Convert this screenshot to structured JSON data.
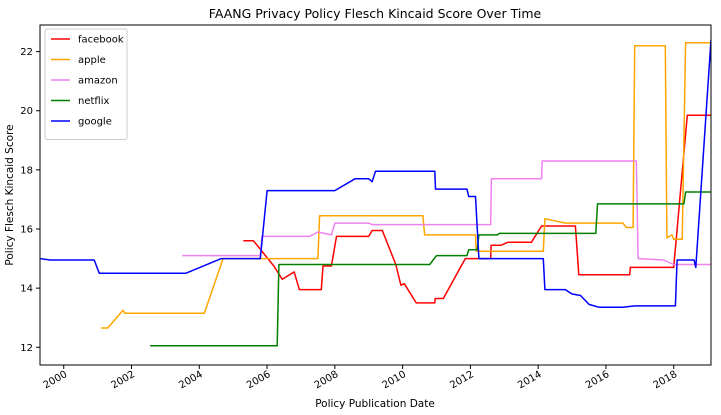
{
  "chart_data": {
    "type": "line",
    "title": "FAANG Privacy Policy Flesch Kincaid Score Over Time",
    "xlabel": "Policy Publication Date",
    "ylabel": "Policy Flesch Kincaid Score",
    "xlim": [
      1999.3,
      2019.1
    ],
    "ylim": [
      11.4,
      22.9
    ],
    "x_ticks": [
      {
        "value": 2000,
        "label": "2000"
      },
      {
        "value": 2002,
        "label": "2002"
      },
      {
        "value": 2004,
        "label": "2004"
      },
      {
        "value": 2006,
        "label": "2006"
      },
      {
        "value": 2008,
        "label": "2008"
      },
      {
        "value": 2010,
        "label": "2010"
      },
      {
        "value": 2012,
        "label": "2012"
      },
      {
        "value": 2014,
        "label": "2014"
      },
      {
        "value": 2016,
        "label": "2016"
      },
      {
        "value": 2018,
        "label": "2018"
      }
    ],
    "y_ticks": [
      {
        "value": 12,
        "label": "12"
      },
      {
        "value": 14,
        "label": "14"
      },
      {
        "value": 16,
        "label": "16"
      },
      {
        "value": 18,
        "label": "18"
      },
      {
        "value": 20,
        "label": "20"
      },
      {
        "value": 22,
        "label": "22"
      }
    ],
    "grid": false,
    "legend": "top-left",
    "series": [
      {
        "name": "facebook",
        "color": "#ff0000",
        "points": [
          [
            2005.3,
            15.6
          ],
          [
            2005.6,
            15.6
          ],
          [
            2006.2,
            14.75
          ],
          [
            2006.45,
            14.3
          ],
          [
            2006.8,
            14.55
          ],
          [
            2006.95,
            13.95
          ],
          [
            2007.6,
            13.95
          ],
          [
            2007.65,
            14.75
          ],
          [
            2007.9,
            14.75
          ],
          [
            2008.05,
            15.75
          ],
          [
            2009.0,
            15.75
          ],
          [
            2009.1,
            15.95
          ],
          [
            2009.4,
            15.95
          ],
          [
            2009.8,
            14.8
          ],
          [
            2009.95,
            14.1
          ],
          [
            2010.05,
            14.15
          ],
          [
            2010.4,
            13.5
          ],
          [
            2010.95,
            13.5
          ],
          [
            2010.96,
            13.65
          ],
          [
            2011.2,
            13.65
          ],
          [
            2011.85,
            15.0
          ],
          [
            2012.6,
            15.0
          ],
          [
            2012.61,
            15.45
          ],
          [
            2012.9,
            15.45
          ],
          [
            2013.1,
            15.55
          ],
          [
            2013.8,
            15.55
          ],
          [
            2014.1,
            16.1
          ],
          [
            2015.1,
            16.1
          ],
          [
            2015.2,
            14.45
          ],
          [
            2016.7,
            14.45
          ],
          [
            2016.72,
            14.7
          ],
          [
            2018.0,
            14.7
          ],
          [
            2018.4,
            19.85
          ],
          [
            2019.1,
            19.85
          ]
        ]
      },
      {
        "name": "apple",
        "color": "#ffa500",
        "points": [
          [
            2001.1,
            12.65
          ],
          [
            2001.3,
            12.65
          ],
          [
            2001.75,
            13.25
          ],
          [
            2001.8,
            13.15
          ],
          [
            2004.0,
            13.15
          ],
          [
            2004.15,
            13.15
          ],
          [
            2004.7,
            15.0
          ],
          [
            2007.5,
            15.0
          ],
          [
            2007.55,
            16.45
          ],
          [
            2010.6,
            16.45
          ],
          [
            2010.65,
            15.8
          ],
          [
            2012.15,
            15.8
          ],
          [
            2012.17,
            15.25
          ],
          [
            2014.15,
            15.25
          ],
          [
            2014.2,
            16.35
          ],
          [
            2014.8,
            16.2
          ],
          [
            2016.5,
            16.2
          ],
          [
            2016.6,
            16.05
          ],
          [
            2016.8,
            16.05
          ],
          [
            2016.85,
            22.2
          ],
          [
            2017.75,
            22.2
          ],
          [
            2017.8,
            15.7
          ],
          [
            2017.95,
            15.8
          ],
          [
            2018.0,
            15.65
          ],
          [
            2018.25,
            15.65
          ],
          [
            2018.35,
            22.3
          ],
          [
            2019.1,
            22.3
          ]
        ]
      },
      {
        "name": "amazon",
        "color": "#ee82ee",
        "points": [
          [
            2003.5,
            15.1
          ],
          [
            2005.8,
            15.1
          ],
          [
            2005.85,
            15.75
          ],
          [
            2007.25,
            15.75
          ],
          [
            2007.5,
            15.9
          ],
          [
            2007.9,
            15.8
          ],
          [
            2008.0,
            16.2
          ],
          [
            2009.0,
            16.2
          ],
          [
            2009.1,
            16.15
          ],
          [
            2012.6,
            16.15
          ],
          [
            2012.62,
            17.7
          ],
          [
            2014.1,
            17.7
          ],
          [
            2014.12,
            18.3
          ],
          [
            2016.9,
            18.3
          ],
          [
            2016.95,
            15.0
          ],
          [
            2017.7,
            14.95
          ],
          [
            2018.0,
            14.8
          ],
          [
            2019.1,
            14.8
          ]
        ]
      },
      {
        "name": "netflix",
        "color": "#008000",
        "points": [
          [
            2002.55,
            12.05
          ],
          [
            2006.3,
            12.05
          ],
          [
            2006.35,
            14.8
          ],
          [
            2010.8,
            14.8
          ],
          [
            2011.0,
            15.1
          ],
          [
            2011.9,
            15.1
          ],
          [
            2011.95,
            15.3
          ],
          [
            2012.2,
            15.3
          ],
          [
            2012.25,
            15.8
          ],
          [
            2012.8,
            15.8
          ],
          [
            2012.85,
            15.85
          ],
          [
            2015.7,
            15.85
          ],
          [
            2015.75,
            16.85
          ],
          [
            2018.3,
            16.85
          ],
          [
            2018.35,
            17.25
          ],
          [
            2019.1,
            17.25
          ]
        ]
      },
      {
        "name": "google",
        "color": "#0000ff",
        "points": [
          [
            1999.3,
            15.0
          ],
          [
            1999.6,
            14.95
          ],
          [
            2000.9,
            14.95
          ],
          [
            2001.05,
            14.5
          ],
          [
            2003.6,
            14.5
          ],
          [
            2004.65,
            15.0
          ],
          [
            2005.6,
            15.0
          ],
          [
            2005.8,
            15.0
          ],
          [
            2006.0,
            17.3
          ],
          [
            2008.0,
            17.3
          ],
          [
            2008.6,
            17.7
          ],
          [
            2009.0,
            17.7
          ],
          [
            2009.1,
            17.6
          ],
          [
            2009.2,
            17.95
          ],
          [
            2010.95,
            17.95
          ],
          [
            2010.97,
            17.35
          ],
          [
            2011.9,
            17.35
          ],
          [
            2011.95,
            17.1
          ],
          [
            2012.15,
            17.1
          ],
          [
            2012.25,
            15.0
          ],
          [
            2014.15,
            15.0
          ],
          [
            2014.2,
            13.95
          ],
          [
            2014.8,
            13.95
          ],
          [
            2015.0,
            13.8
          ],
          [
            2015.25,
            13.75
          ],
          [
            2015.5,
            13.45
          ],
          [
            2015.8,
            13.35
          ],
          [
            2016.5,
            13.35
          ],
          [
            2016.85,
            13.4
          ],
          [
            2017.6,
            13.4
          ],
          [
            2018.05,
            13.4
          ],
          [
            2018.1,
            14.95
          ],
          [
            2018.6,
            14.95
          ],
          [
            2018.65,
            14.7
          ],
          [
            2019.1,
            22.4
          ]
        ]
      }
    ]
  }
}
